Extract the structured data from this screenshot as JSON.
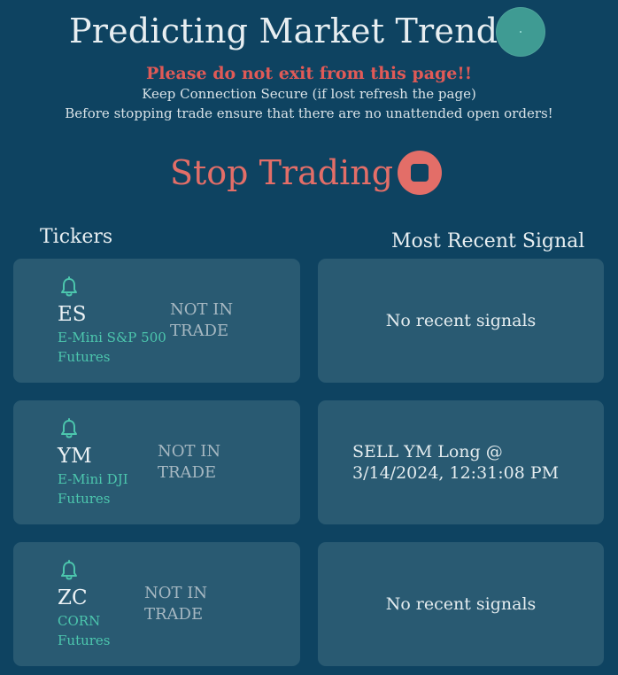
{
  "header": {
    "title": "Predicting Market Trends",
    "status_color": "#3f9b93"
  },
  "notice": {
    "warning": "Please do not exit from this page!!",
    "line1": "Keep Connection Secure (if lost refresh the page)",
    "line2": "Before stopping trade ensure that there are no unattended open orders!"
  },
  "controls": {
    "stop_label": "Stop Trading",
    "stop_icon": "stop-icon",
    "accent": "#e36e68"
  },
  "columns": {
    "tickers": "Tickers",
    "signal": "Most Recent Signal"
  },
  "tickers": [
    {
      "symbol": "ES",
      "desc_line1": "E-Mini S&P 500",
      "desc_line2": "Futures",
      "status_line1": "NOT IN",
      "status_line2": "TRADE",
      "icon": "bell-icon",
      "signal": "No recent signals"
    },
    {
      "symbol": "YM",
      "desc_line1": "E-Mini DJI",
      "desc_line2": "Futures",
      "status_line1": "NOT IN",
      "status_line2": "TRADE",
      "icon": "bell-icon",
      "signal_line1": "SELL YM Long @",
      "signal_line2": "3/14/2024, 12:31:08 PM"
    },
    {
      "symbol": "ZC",
      "desc_line1": "CORN",
      "desc_line2": "Futures",
      "status_line1": "NOT IN",
      "status_line2": "TRADE",
      "icon": "bell-icon",
      "signal": "No recent signals"
    }
  ]
}
